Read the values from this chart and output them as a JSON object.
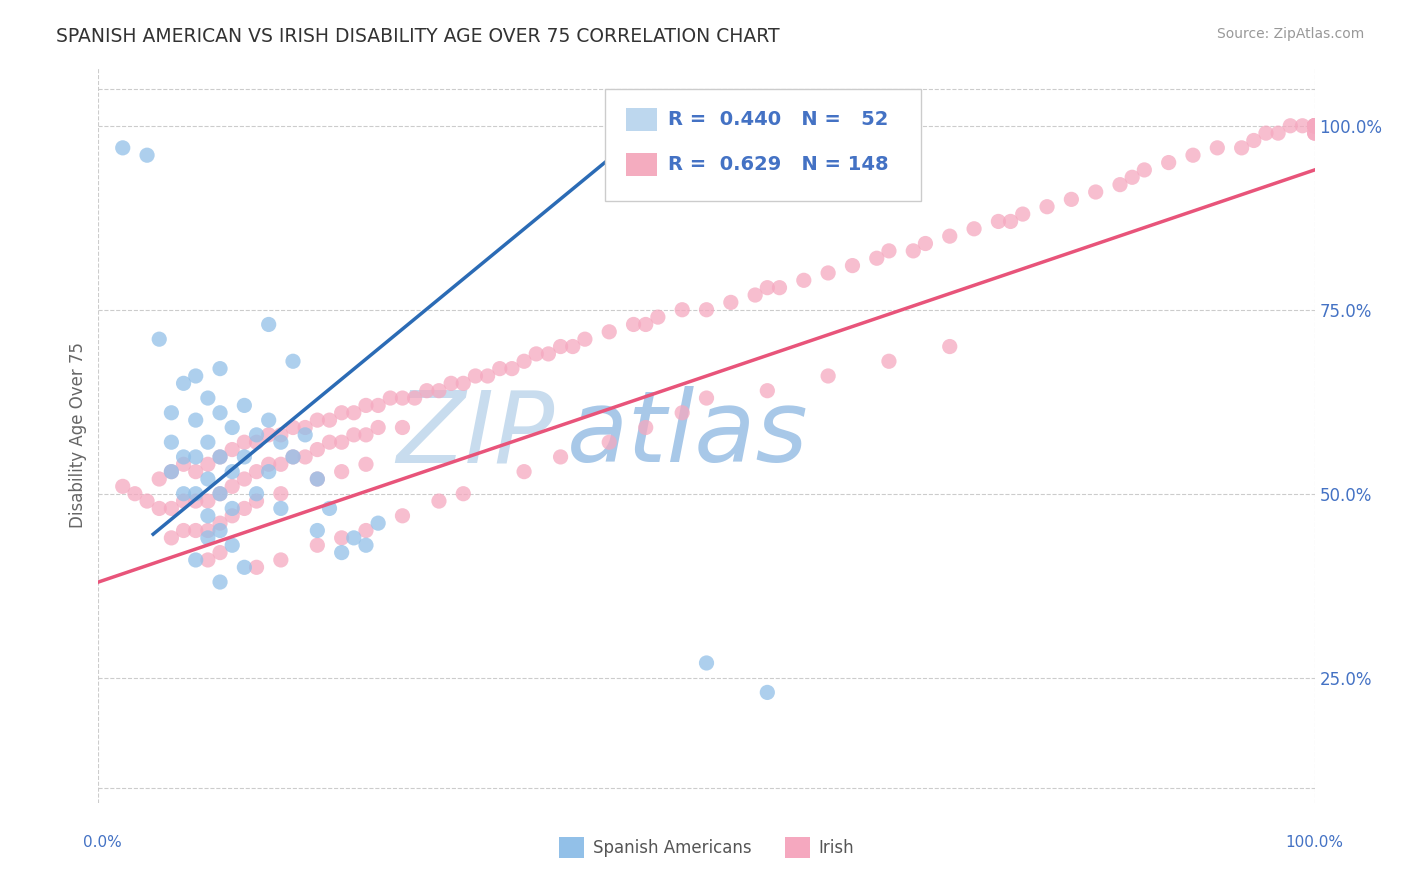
{
  "title": "SPANISH AMERICAN VS IRISH DISABILITY AGE OVER 75 CORRELATION CHART",
  "source": "Source: ZipAtlas.com",
  "ylabel": "Disability Age Over 75",
  "legend_label1": "Spanish Americans",
  "legend_label2": "Irish",
  "R1": 0.44,
  "N1": 52,
  "R2": 0.629,
  "N2": 148,
  "blue_color": "#92C0E8",
  "pink_color": "#F5A8BF",
  "blue_line_color": "#2B6BB5",
  "pink_line_color": "#E8547A",
  "legend_fill_blue": "#BDD7EE",
  "legend_fill_pink": "#F4ACBF",
  "axis_label_color": "#4472C4",
  "watermark_color_zip": "#C8DCEE",
  "watermark_color_atlas": "#A8C8E8",
  "background_color": "#FFFFFF",
  "grid_color": "#CCCCCC",
  "ytick_labels": [
    "25.0%",
    "50.0%",
    "75.0%",
    "100.0%"
  ],
  "ytick_values": [
    0.25,
    0.5,
    0.75,
    1.0
  ],
  "xmin": 0.0,
  "xmax": 1.0,
  "ymin": 0.08,
  "ymax": 1.08,
  "blue_scatter_x": [
    0.02,
    0.04,
    0.05,
    0.06,
    0.06,
    0.06,
    0.07,
    0.07,
    0.07,
    0.08,
    0.08,
    0.08,
    0.08,
    0.09,
    0.09,
    0.09,
    0.09,
    0.1,
    0.1,
    0.1,
    0.1,
    0.1,
    0.11,
    0.11,
    0.11,
    0.12,
    0.12,
    0.13,
    0.13,
    0.14,
    0.14,
    0.15,
    0.15,
    0.16,
    0.17,
    0.18,
    0.19,
    0.2,
    0.21,
    0.22,
    0.23,
    0.14,
    0.16,
    0.08,
    0.09,
    0.1,
    0.11,
    0.12,
    0.18,
    0.5,
    0.55
  ],
  "blue_scatter_y": [
    0.97,
    0.96,
    0.71,
    0.61,
    0.57,
    0.53,
    0.65,
    0.55,
    0.5,
    0.66,
    0.6,
    0.55,
    0.5,
    0.63,
    0.57,
    0.52,
    0.47,
    0.67,
    0.61,
    0.55,
    0.5,
    0.45,
    0.59,
    0.53,
    0.48,
    0.62,
    0.55,
    0.58,
    0.5,
    0.6,
    0.53,
    0.57,
    0.48,
    0.55,
    0.58,
    0.45,
    0.48,
    0.42,
    0.44,
    0.43,
    0.46,
    0.73,
    0.68,
    0.41,
    0.44,
    0.38,
    0.43,
    0.4,
    0.52,
    0.27,
    0.23
  ],
  "pink_scatter_x": [
    0.02,
    0.03,
    0.04,
    0.05,
    0.05,
    0.06,
    0.06,
    0.06,
    0.07,
    0.07,
    0.07,
    0.08,
    0.08,
    0.08,
    0.09,
    0.09,
    0.09,
    0.09,
    0.1,
    0.1,
    0.1,
    0.1,
    0.11,
    0.11,
    0.11,
    0.12,
    0.12,
    0.12,
    0.13,
    0.13,
    0.13,
    0.14,
    0.14,
    0.15,
    0.15,
    0.15,
    0.16,
    0.16,
    0.17,
    0.17,
    0.18,
    0.18,
    0.18,
    0.19,
    0.19,
    0.2,
    0.2,
    0.2,
    0.21,
    0.21,
    0.22,
    0.22,
    0.22,
    0.23,
    0.23,
    0.24,
    0.25,
    0.25,
    0.26,
    0.27,
    0.28,
    0.29,
    0.3,
    0.31,
    0.32,
    0.33,
    0.34,
    0.35,
    0.36,
    0.37,
    0.38,
    0.39,
    0.4,
    0.42,
    0.44,
    0.45,
    0.46,
    0.48,
    0.5,
    0.52,
    0.54,
    0.55,
    0.56,
    0.58,
    0.6,
    0.62,
    0.64,
    0.65,
    0.67,
    0.68,
    0.7,
    0.72,
    0.74,
    0.75,
    0.76,
    0.78,
    0.8,
    0.82,
    0.84,
    0.85,
    0.86,
    0.88,
    0.9,
    0.92,
    0.94,
    0.95,
    0.96,
    0.97,
    0.98,
    0.99,
    1.0,
    1.0,
    1.0,
    1.0,
    1.0,
    1.0,
    1.0,
    1.0,
    1.0,
    1.0,
    1.0,
    1.0,
    1.0,
    0.5,
    0.55,
    0.48,
    0.6,
    0.65,
    0.7,
    0.42,
    0.45,
    0.38,
    0.35,
    0.3,
    0.28,
    0.25,
    0.22,
    0.2,
    0.18,
    0.15,
    0.13
  ],
  "pink_scatter_y": [
    0.51,
    0.5,
    0.49,
    0.52,
    0.48,
    0.53,
    0.48,
    0.44,
    0.54,
    0.49,
    0.45,
    0.53,
    0.49,
    0.45,
    0.54,
    0.49,
    0.45,
    0.41,
    0.55,
    0.5,
    0.46,
    0.42,
    0.56,
    0.51,
    0.47,
    0.57,
    0.52,
    0.48,
    0.57,
    0.53,
    0.49,
    0.58,
    0.54,
    0.58,
    0.54,
    0.5,
    0.59,
    0.55,
    0.59,
    0.55,
    0.6,
    0.56,
    0.52,
    0.6,
    0.57,
    0.61,
    0.57,
    0.53,
    0.61,
    0.58,
    0.62,
    0.58,
    0.54,
    0.62,
    0.59,
    0.63,
    0.63,
    0.59,
    0.63,
    0.64,
    0.64,
    0.65,
    0.65,
    0.66,
    0.66,
    0.67,
    0.67,
    0.68,
    0.69,
    0.69,
    0.7,
    0.7,
    0.71,
    0.72,
    0.73,
    0.73,
    0.74,
    0.75,
    0.75,
    0.76,
    0.77,
    0.78,
    0.78,
    0.79,
    0.8,
    0.81,
    0.82,
    0.83,
    0.83,
    0.84,
    0.85,
    0.86,
    0.87,
    0.87,
    0.88,
    0.89,
    0.9,
    0.91,
    0.92,
    0.93,
    0.94,
    0.95,
    0.96,
    0.97,
    0.97,
    0.98,
    0.99,
    0.99,
    1.0,
    1.0,
    1.0,
    1.0,
    1.0,
    1.0,
    1.0,
    1.0,
    1.0,
    1.0,
    1.0,
    1.0,
    0.99,
    1.0,
    0.99,
    0.63,
    0.64,
    0.61,
    0.66,
    0.68,
    0.7,
    0.57,
    0.59,
    0.55,
    0.53,
    0.5,
    0.49,
    0.47,
    0.45,
    0.44,
    0.43,
    0.41,
    0.4
  ],
  "blue_line_x": [
    0.045,
    0.42
  ],
  "blue_line_y": [
    0.445,
    0.955
  ],
  "pink_line_x": [
    0.0,
    1.0
  ],
  "pink_line_y": [
    0.38,
    0.94
  ]
}
